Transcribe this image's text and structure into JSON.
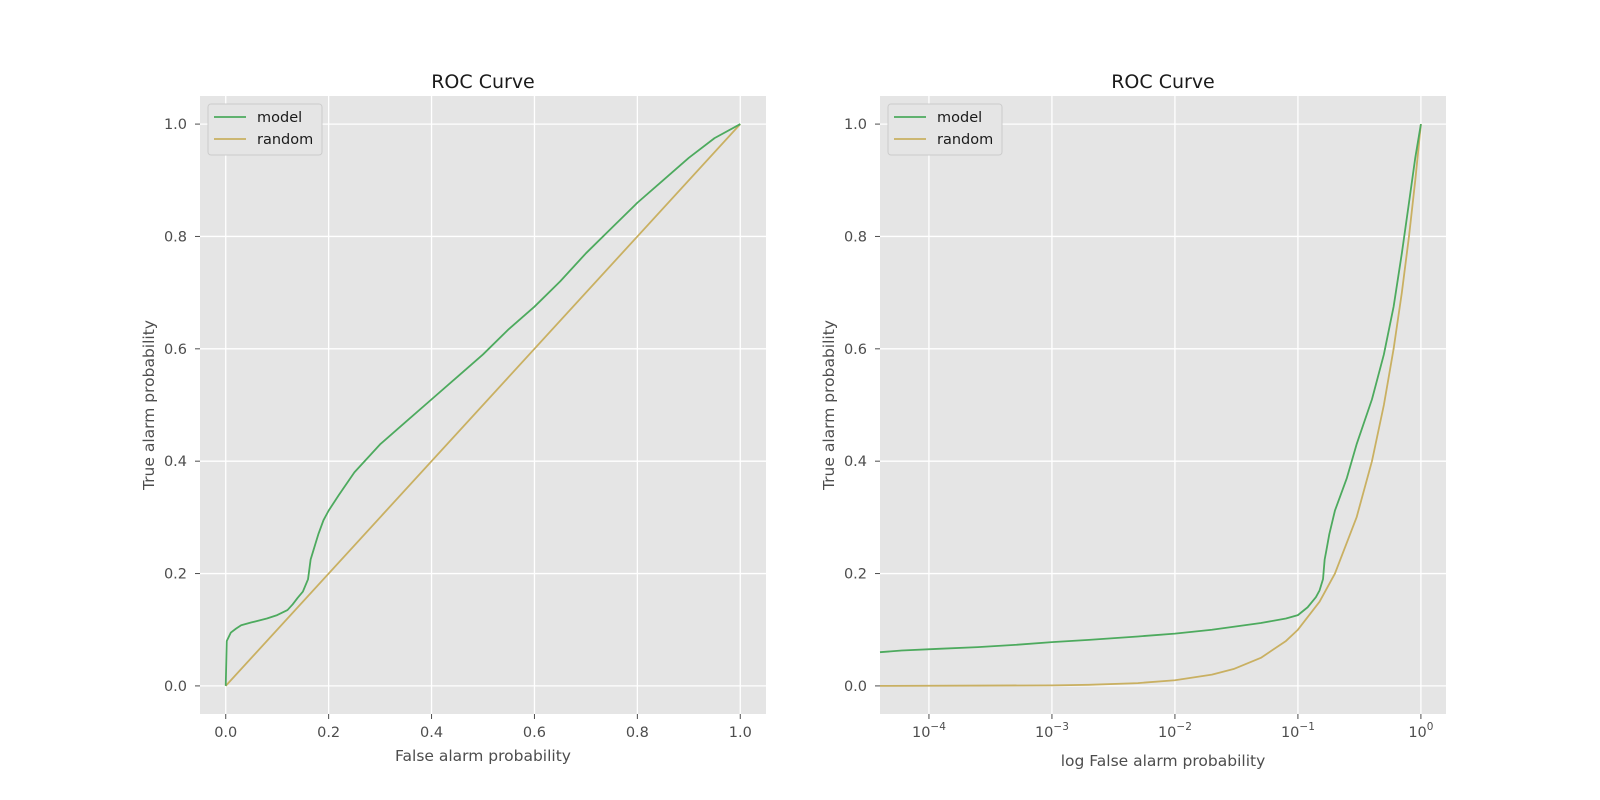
{
  "chart_data": [
    {
      "type": "line",
      "title": "ROC Curve",
      "xlabel": "False alarm probability",
      "ylabel": "True alarm probability",
      "xscale": "linear",
      "xlim": [
        -0.05,
        1.05
      ],
      "ylim": [
        -0.05,
        1.05
      ],
      "xticks": [
        0.0,
        0.2,
        0.4,
        0.6,
        0.8,
        1.0
      ],
      "xtick_labels": [
        "0.0",
        "0.2",
        "0.4",
        "0.6",
        "0.8",
        "1.0"
      ],
      "yticks": [
        0.0,
        0.2,
        0.4,
        0.6,
        0.8,
        1.0
      ],
      "ytick_labels": [
        "0.0",
        "0.2",
        "0.4",
        "0.6",
        "0.8",
        "1.0"
      ],
      "grid": true,
      "legend_position": "top-left",
      "series": [
        {
          "name": "model",
          "color": "#4daa5e",
          "x": [
            0.0,
            0.002,
            0.01,
            0.02,
            0.03,
            0.05,
            0.08,
            0.1,
            0.12,
            0.13,
            0.14,
            0.15,
            0.16,
            0.165,
            0.17,
            0.175,
            0.18,
            0.19,
            0.2,
            0.22,
            0.25,
            0.3,
            0.35,
            0.4,
            0.45,
            0.5,
            0.55,
            0.6,
            0.65,
            0.7,
            0.75,
            0.8,
            0.85,
            0.9,
            0.95,
            1.0
          ],
          "y": [
            0.0,
            0.08,
            0.095,
            0.102,
            0.108,
            0.113,
            0.12,
            0.126,
            0.135,
            0.145,
            0.157,
            0.168,
            0.19,
            0.225,
            0.24,
            0.255,
            0.27,
            0.295,
            0.312,
            0.34,
            0.38,
            0.43,
            0.47,
            0.51,
            0.55,
            0.59,
            0.635,
            0.675,
            0.72,
            0.77,
            0.815,
            0.86,
            0.9,
            0.94,
            0.975,
            1.0
          ]
        },
        {
          "name": "random",
          "color": "#c9b062",
          "x": [
            0.0,
            1.0
          ],
          "y": [
            0.0,
            1.0
          ]
        }
      ]
    },
    {
      "type": "line",
      "title": "ROC Curve",
      "xlabel": "log False alarm probability",
      "ylabel": "True alarm probability",
      "xscale": "log",
      "xlim": [
        4e-05,
        1.6
      ],
      "ylim": [
        -0.05,
        1.05
      ],
      "xticks": [
        0.0001,
        0.001,
        0.01,
        0.1,
        1.0
      ],
      "xtick_labels": [
        {
          "base": "10",
          "exp": "−4"
        },
        {
          "base": "10",
          "exp": "−3"
        },
        {
          "base": "10",
          "exp": "−2"
        },
        {
          "base": "10",
          "exp": "−1"
        },
        {
          "base": "10",
          "exp": "0"
        }
      ],
      "yticks": [
        0.0,
        0.2,
        0.4,
        0.6,
        0.8,
        1.0
      ],
      "ytick_labels": [
        "0.0",
        "0.2",
        "0.4",
        "0.6",
        "0.8",
        "1.0"
      ],
      "grid": true,
      "legend_position": "top-left",
      "series": [
        {
          "name": "model",
          "color": "#4daa5e",
          "x": [
            4e-05,
            6e-05,
            0.00012,
            0.00025,
            0.0005,
            0.001,
            0.002,
            0.005,
            0.01,
            0.02,
            0.05,
            0.08,
            0.1,
            0.12,
            0.14,
            0.15,
            0.16,
            0.165,
            0.17,
            0.18,
            0.2,
            0.25,
            0.3,
            0.4,
            0.5,
            0.6,
            0.7,
            0.8,
            0.9,
            1.0
          ],
          "y": [
            0.06,
            0.063,
            0.066,
            0.069,
            0.073,
            0.078,
            0.082,
            0.088,
            0.093,
            0.1,
            0.112,
            0.12,
            0.126,
            0.14,
            0.158,
            0.17,
            0.19,
            0.225,
            0.24,
            0.27,
            0.312,
            0.37,
            0.43,
            0.51,
            0.59,
            0.675,
            0.77,
            0.86,
            0.94,
            1.0
          ]
        },
        {
          "name": "random",
          "color": "#c9b062",
          "x": [
            4e-05,
            0.001,
            0.002,
            0.005,
            0.01,
            0.02,
            0.03,
            0.05,
            0.08,
            0.1,
            0.15,
            0.2,
            0.3,
            0.4,
            0.5,
            0.6,
            0.7,
            0.8,
            0.9,
            1.0
          ],
          "y": [
            4e-05,
            0.001,
            0.002,
            0.005,
            0.01,
            0.02,
            0.03,
            0.05,
            0.08,
            0.1,
            0.15,
            0.2,
            0.3,
            0.4,
            0.5,
            0.6,
            0.7,
            0.8,
            0.9,
            1.0
          ]
        }
      ]
    }
  ]
}
